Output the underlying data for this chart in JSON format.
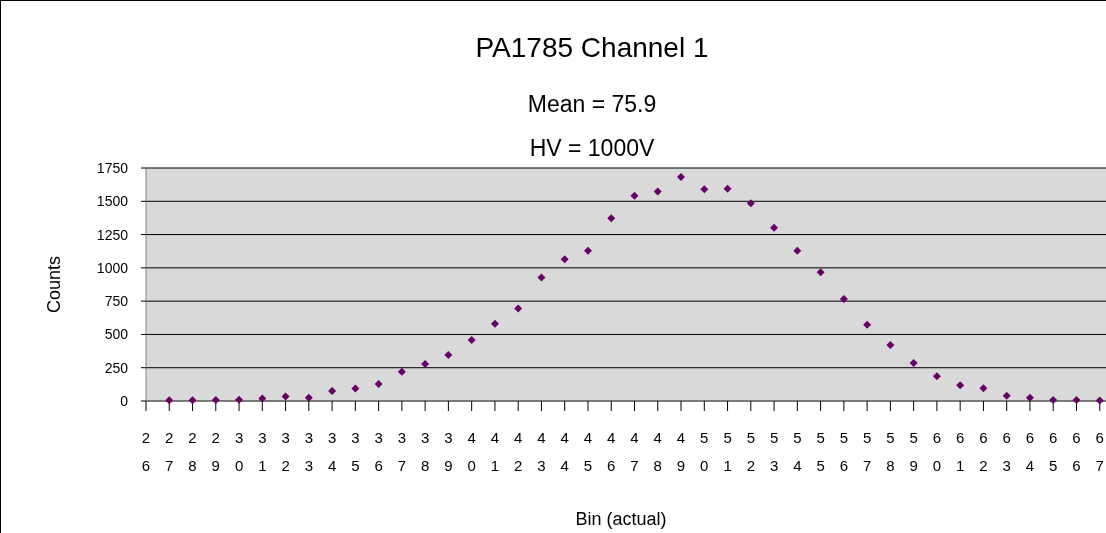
{
  "chart_data": {
    "type": "scatter",
    "title": "PA1785 Channel 1",
    "subtitle": "Mean = 75.9\nHV = 1000V",
    "xlabel": "Bin (actual)",
    "ylabel": "Counts",
    "x": [
      27,
      28,
      29,
      30,
      31,
      32,
      33,
      34,
      35,
      36,
      37,
      38,
      39,
      40,
      41,
      42,
      43,
      44,
      45,
      46,
      47,
      48,
      49,
      50,
      51,
      52,
      53,
      54,
      55,
      56,
      57,
      58,
      59,
      60,
      61,
      62,
      63,
      64,
      65,
      66,
      67
    ],
    "series": [
      {
        "color": "#660066",
        "values": [
          5,
          5,
          8,
          10,
          18,
          33,
          25,
          75,
          93,
          128,
          220,
          278,
          345,
          458,
          580,
          695,
          928,
          1065,
          1128,
          1372,
          1542,
          1573,
          1683,
          1590,
          1595,
          1485,
          1301,
          1128,
          967,
          766,
          573,
          420,
          286,
          186,
          118,
          95,
          40,
          25,
          8,
          8,
          3
        ]
      }
    ],
    "xlim": [
      26,
      68
    ],
    "xticks": [
      26,
      27,
      28,
      29,
      30,
      31,
      32,
      33,
      34,
      35,
      36,
      37,
      38,
      39,
      40,
      41,
      42,
      43,
      44,
      45,
      46,
      47,
      48,
      49,
      50,
      51,
      52,
      53,
      54,
      55,
      56,
      57,
      58,
      59,
      60,
      61,
      62,
      63,
      64,
      65,
      66,
      67
    ],
    "ylim": [
      0,
      1750
    ],
    "yticks": [
      0,
      250,
      500,
      750,
      1000,
      1250,
      1500,
      1750
    ],
    "grid": "y",
    "marker": "diamond"
  }
}
